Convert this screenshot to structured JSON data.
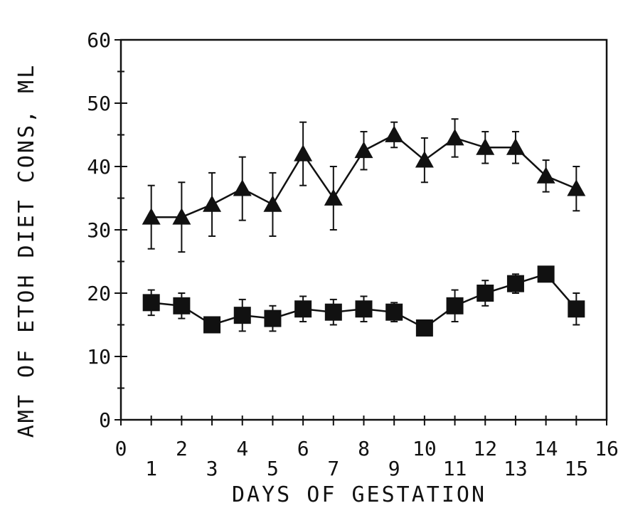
{
  "chart_data": {
    "type": "line",
    "title": "",
    "xlabel": "DAYS OF GESTATION",
    "ylabel": "AMT OF ETOH DIET CONS, ML",
    "xlim": [
      0,
      16
    ],
    "ylim": [
      0,
      60
    ],
    "x_ticks_top_row": [
      0,
      2,
      4,
      6,
      8,
      10,
      12,
      14,
      16
    ],
    "x_ticks_bottom_row": [
      1,
      3,
      5,
      7,
      9,
      11,
      13,
      15
    ],
    "y_ticks": [
      0,
      10,
      20,
      30,
      40,
      50,
      60
    ],
    "grid": false,
    "legend": "none",
    "series": [
      {
        "marker": "triangle",
        "color": "#111111",
        "x": [
          1,
          2,
          3,
          4,
          5,
          6,
          7,
          8,
          9,
          10,
          11,
          12,
          13,
          14,
          15
        ],
        "values": [
          32,
          32,
          34,
          36.5,
          34,
          42,
          35,
          42.5,
          45,
          41,
          44.5,
          43,
          43,
          38.5,
          36.5
        ],
        "error": [
          5,
          5.5,
          5,
          5,
          5,
          5,
          5,
          3,
          2,
          3.5,
          3,
          2.5,
          2.5,
          2.5,
          3.5
        ]
      },
      {
        "marker": "square",
        "color": "#111111",
        "x": [
          1,
          2,
          3,
          4,
          5,
          6,
          7,
          8,
          9,
          10,
          11,
          12,
          13,
          14,
          15
        ],
        "values": [
          18.5,
          18,
          15,
          16.5,
          16,
          17.5,
          17,
          17.5,
          17,
          14.5,
          18,
          20,
          21.5,
          23,
          17.5
        ],
        "error": [
          2,
          2,
          1,
          2.5,
          2,
          2,
          2,
          2,
          1.5,
          1,
          2.5,
          2,
          1.5,
          1,
          2.5
        ]
      }
    ]
  }
}
